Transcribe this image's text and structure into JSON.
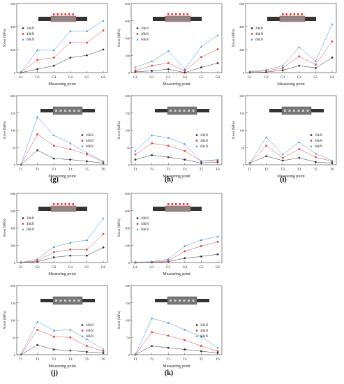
{
  "colors": {
    "s20": "#333333",
    "s40": "#e8413a",
    "s60": "#3d8fe0",
    "grid": "#bbbbbb",
    "axis": "#333333"
  },
  "labels": [
    "(g)",
    "(h)",
    "(i)",
    "(j)",
    "(k)"
  ],
  "chart_data": [
    {
      "type": "line",
      "ylabel": "Stress (MPa)",
      "xlabel": "Measuring point",
      "categories": [
        "G1",
        "G2",
        "G3",
        "G4",
        "G5",
        "G6"
      ],
      "ylim": [
        0,
        600
      ],
      "yticks": [
        0,
        200,
        400,
        600
      ],
      "marker": "gauge",
      "series": [
        {
          "name": "20kN",
          "values": [
            0,
            30,
            60,
            130,
            150,
            200
          ]
        },
        {
          "name": "40kN",
          "values": [
            0,
            110,
            130,
            260,
            260,
            365
          ]
        },
        {
          "name": "60kN",
          "values": [
            0,
            195,
            195,
            360,
            360,
            450
          ]
        }
      ]
    },
    {
      "type": "line",
      "ylabel": "Stress (MPa)",
      "xlabel": "Measuring point",
      "categories": [
        "G1",
        "G2",
        "G3",
        "G4",
        "G5",
        "G6"
      ],
      "ylim": [
        0,
        800
      ],
      "yticks": [
        0,
        200,
        400,
        600,
        800
      ],
      "marker": "gauge",
      "series": [
        {
          "name": "20kN",
          "values": [
            10,
            20,
            40,
            0,
            60,
            110
          ]
        },
        {
          "name": "40kN",
          "values": [
            25,
            80,
            110,
            20,
            180,
            270
          ]
        },
        {
          "name": "60kN",
          "values": [
            60,
            130,
            250,
            40,
            300,
            430
          ]
        }
      ]
    },
    {
      "type": "line",
      "ylabel": "Stress (MPa)",
      "xlabel": "Measuring point",
      "categories": [
        "G1",
        "G2",
        "G3",
        "G4",
        "G5",
        "G6"
      ],
      "ylim": [
        0,
        600
      ],
      "yticks": [
        0,
        200,
        400,
        600
      ],
      "marker": "gauge",
      "series": [
        {
          "name": "20kN",
          "values": [
            0,
            5,
            20,
            60,
            40,
            130
          ]
        },
        {
          "name": "40kN",
          "values": [
            5,
            15,
            40,
            140,
            70,
            270
          ]
        },
        {
          "name": "60kN",
          "values": [
            10,
            25,
            60,
            220,
            100,
            420
          ]
        }
      ]
    },
    {
      "type": "line",
      "ylabel": "Stress (MPa)",
      "xlabel": "Measuring point",
      "categories": [
        "T1",
        "T2",
        "T3",
        "T4",
        "T5",
        "T6"
      ],
      "ylim": [
        0,
        200
      ],
      "yticks": [
        0,
        50,
        100,
        150,
        200
      ],
      "marker": "bolt",
      "series": [
        {
          "name": "20kN",
          "values": [
            0,
            42,
            18,
            15,
            10,
            5
          ]
        },
        {
          "name": "40kN",
          "values": [
            0,
            88,
            55,
            45,
            30,
            8
          ]
        },
        {
          "name": "60kN",
          "values": [
            0,
            138,
            85,
            62,
            35,
            10
          ]
        }
      ]
    },
    {
      "type": "line",
      "ylabel": "Stress (MPa)",
      "xlabel": "Measuring point",
      "categories": [
        "T1",
        "T2",
        "T3",
        "T4",
        "T5",
        "T6"
      ],
      "ylim": [
        0,
        200
      ],
      "yticks": [
        0,
        50,
        100,
        150,
        200
      ],
      "marker": "bolt",
      "series": [
        {
          "name": "20kN",
          "values": [
            15,
            28,
            22,
            15,
            5,
            8
          ]
        },
        {
          "name": "40kN",
          "values": [
            30,
            62,
            55,
            40,
            10,
            12
          ]
        },
        {
          "name": "60kN",
          "values": [
            40,
            85,
            78,
            60,
            10,
            15
          ]
        }
      ]
    },
    {
      "type": "line",
      "ylabel": "Stress (MPa)",
      "xlabel": "Measuring point",
      "categories": [
        "T1",
        "T2",
        "T3",
        "T4",
        "T5",
        "T6"
      ],
      "ylim": [
        0,
        200
      ],
      "yticks": [
        0,
        50,
        100,
        150,
        200
      ],
      "marker": "bolt",
      "series": [
        {
          "name": "20kN",
          "values": [
            5,
            25,
            12,
            20,
            8,
            5
          ]
        },
        {
          "name": "40kN",
          "values": [
            5,
            55,
            20,
            45,
            22,
            10
          ]
        },
        {
          "name": "60kN",
          "values": [
            5,
            80,
            30,
            65,
            32,
            12
          ]
        }
      ]
    },
    {
      "type": "line",
      "ylabel": "Stress (MPa)",
      "xlabel": "Measuring point",
      "categories": [
        "G1",
        "G2",
        "G3",
        "G4",
        "G5",
        "G6"
      ],
      "ylim": [
        0,
        800
      ],
      "yticks": [
        0,
        200,
        400,
        600,
        800
      ],
      "marker": "gauge",
      "series": [
        {
          "name": "20kN",
          "values": [
            0,
            10,
            60,
            80,
            80,
            175
          ]
        },
        {
          "name": "40kN",
          "values": [
            0,
            20,
            120,
            150,
            150,
            330
          ]
        },
        {
          "name": "60kN",
          "values": [
            0,
            40,
            180,
            230,
            260,
            510
          ]
        }
      ]
    },
    {
      "type": "line",
      "ylabel": "Stress (MPa)",
      "xlabel": "Measuring point",
      "categories": [
        "G1",
        "G2",
        "G3",
        "G4",
        "G5",
        "G6"
      ],
      "ylim": [
        0,
        800
      ],
      "yticks": [
        0,
        200,
        400,
        600,
        800
      ],
      "marker": "gauge",
      "series": [
        {
          "name": "20kN",
          "values": [
            0,
            0,
            10,
            50,
            70,
            95
          ]
        },
        {
          "name": "40kN",
          "values": [
            0,
            5,
            20,
            130,
            190,
            240
          ]
        },
        {
          "name": "60kN",
          "values": [
            5,
            10,
            40,
            190,
            260,
            300
          ]
        }
      ]
    },
    {
      "type": "line",
      "ylabel": "Stress (MPa)",
      "xlabel": "Measuring point",
      "categories": [
        "T1",
        "T2",
        "T3",
        "T4",
        "T5",
        "T6"
      ],
      "ylim": [
        0,
        200
      ],
      "yticks": [
        0,
        50,
        100,
        150,
        200
      ],
      "marker": "bolt",
      "series": [
        {
          "name": "20kN",
          "values": [
            0,
            28,
            15,
            12,
            8,
            5
          ]
        },
        {
          "name": "40kN",
          "values": [
            0,
            72,
            52,
            50,
            25,
            10
          ]
        },
        {
          "name": "60kN",
          "values": [
            0,
            95,
            70,
            72,
            45,
            15
          ]
        }
      ]
    },
    {
      "type": "line",
      "ylabel": "Stress (MPa)",
      "xlabel": "Measuring point",
      "categories": [
        "T1",
        "T2",
        "T3",
        "T4",
        "T5",
        "T6"
      ],
      "ylim": [
        0,
        200
      ],
      "yticks": [
        0,
        50,
        100,
        150,
        200
      ],
      "marker": "bolt",
      "series": [
        {
          "name": "20kN",
          "values": [
            0,
            25,
            20,
            15,
            10,
            5
          ]
        },
        {
          "name": "40kN",
          "values": [
            0,
            65,
            55,
            42,
            25,
            10
          ]
        },
        {
          "name": "60kN",
          "values": [
            0,
            105,
            92,
            72,
            52,
            20
          ]
        }
      ]
    }
  ]
}
